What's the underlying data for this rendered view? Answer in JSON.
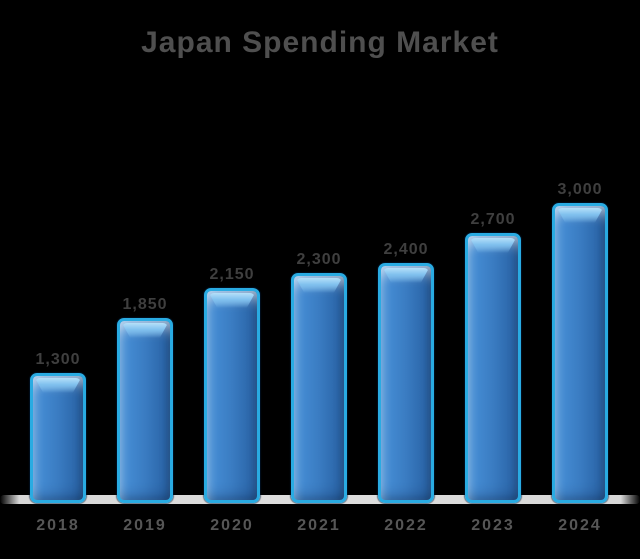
{
  "chart_data": {
    "type": "bar",
    "title": "Japan Spending Market",
    "categories": [
      "2018",
      "2019",
      "2020",
      "2021",
      "2022",
      "2023",
      "2024"
    ],
    "values": [
      1300,
      1850,
      2150,
      2300,
      2400,
      2700,
      3000
    ],
    "value_labels": [
      "1,300",
      "1,850",
      "2,150",
      "2,300",
      "2,400",
      "2,700",
      "3,000"
    ],
    "xlabel": "",
    "ylabel": "",
    "ylim": [
      0,
      3100
    ],
    "grid": false,
    "legend": false,
    "axis_lines": false,
    "floor_shadow": true
  },
  "colors": {
    "background": "#000000",
    "bar_edge": "#29abe2",
    "bar_body": "#3a7cc2",
    "bar_highlight": "#b5e0f9",
    "title_text": "#4f4f4f",
    "label_text": "#3f3f3f",
    "axis_text": "#565656",
    "floor": "#d7d7d7"
  }
}
